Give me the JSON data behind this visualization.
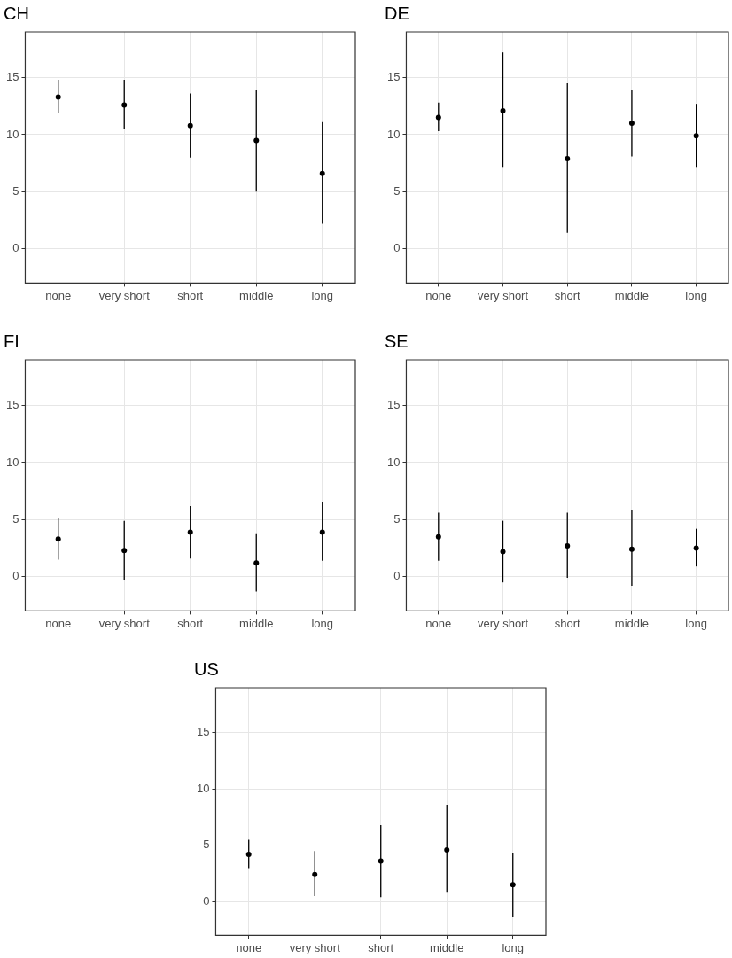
{
  "chart_data": [
    {
      "type": "scatter",
      "title": "CH",
      "categories": [
        "none",
        "very short",
        "short",
        "middle",
        "long"
      ],
      "values": [
        13.3,
        12.6,
        10.8,
        9.5,
        6.6
      ],
      "errors": [
        [
          11.9,
          14.8
        ],
        [
          10.5,
          14.8
        ],
        [
          8.0,
          13.6
        ],
        [
          5.0,
          13.9
        ],
        [
          2.2,
          11.1
        ]
      ],
      "color": "#000000",
      "marker": "circle",
      "ylim": [
        -3,
        19
      ],
      "yticks": [
        0,
        5,
        10,
        15
      ],
      "grid": true
    },
    {
      "type": "scatter",
      "title": "DE",
      "categories": [
        "none",
        "very short",
        "short",
        "middle",
        "long"
      ],
      "values": [
        11.5,
        12.1,
        7.9,
        11.0,
        9.9
      ],
      "errors": [
        [
          10.3,
          12.8
        ],
        [
          7.1,
          17.2
        ],
        [
          1.4,
          14.5
        ],
        [
          8.1,
          13.9
        ],
        [
          7.1,
          12.7
        ]
      ],
      "color": "#000000",
      "marker": "circle",
      "ylim": [
        -3,
        19
      ],
      "yticks": [
        0,
        5,
        10,
        15
      ],
      "grid": true
    },
    {
      "type": "scatter",
      "title": "FI",
      "categories": [
        "none",
        "very short",
        "short",
        "middle",
        "long"
      ],
      "values": [
        3.3,
        2.3,
        3.9,
        1.2,
        3.9
      ],
      "errors": [
        [
          1.5,
          5.1
        ],
        [
          -0.3,
          4.9
        ],
        [
          1.6,
          6.2
        ],
        [
          -1.3,
          3.8
        ],
        [
          1.4,
          6.5
        ]
      ],
      "color": "#000000",
      "marker": "circle",
      "ylim": [
        -3,
        19
      ],
      "yticks": [
        0,
        5,
        10,
        15
      ],
      "grid": true
    },
    {
      "type": "scatter",
      "title": "SE",
      "categories": [
        "none",
        "very short",
        "short",
        "middle",
        "long"
      ],
      "values": [
        3.5,
        2.2,
        2.7,
        2.4,
        2.5
      ],
      "errors": [
        [
          1.4,
          5.6
        ],
        [
          -0.5,
          4.9
        ],
        [
          -0.1,
          5.6
        ],
        [
          -0.8,
          5.8
        ],
        [
          0.9,
          4.2
        ]
      ],
      "color": "#000000",
      "marker": "circle",
      "ylim": [
        -3,
        19
      ],
      "yticks": [
        0,
        5,
        10,
        15
      ],
      "grid": true
    },
    {
      "type": "scatter",
      "title": "US",
      "categories": [
        "none",
        "very short",
        "short",
        "middle",
        "long"
      ],
      "values": [
        4.2,
        2.4,
        3.6,
        4.6,
        1.5
      ],
      "errors": [
        [
          2.9,
          5.5
        ],
        [
          0.5,
          4.5
        ],
        [
          0.4,
          6.8
        ],
        [
          0.8,
          8.6
        ],
        [
          -1.4,
          4.3
        ]
      ],
      "color": "#000000",
      "marker": "circle",
      "ylim": [
        -3,
        19
      ],
      "yticks": [
        0,
        5,
        10,
        15
      ],
      "grid": true
    }
  ]
}
